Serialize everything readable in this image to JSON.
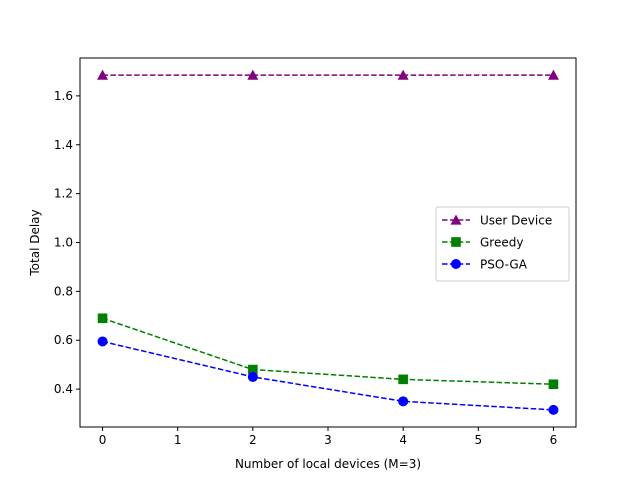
{
  "chart_data": {
    "type": "line",
    "title": "",
    "xlabel": "Number of local devices (M=3)",
    "ylabel": "Total Delay",
    "xlim": [
      -0.3,
      6.3
    ],
    "ylim": [
      0.245,
      1.755
    ],
    "xticks": [
      0,
      1,
      2,
      3,
      4,
      5,
      6
    ],
    "yticks": [
      0.4,
      0.6,
      0.8,
      1.0,
      1.2,
      1.4,
      1.6
    ],
    "ytick_labels": [
      "0.4",
      "0.6",
      "0.8",
      "1.0",
      "1.2",
      "1.4",
      "1.6"
    ],
    "grid": false,
    "legend_position": "center-right",
    "x": [
      0,
      2,
      4,
      6
    ],
    "series": [
      {
        "name": "User Device",
        "values": [
          1.685,
          1.685,
          1.685,
          1.685
        ],
        "color": "#800080",
        "marker": "triangle",
        "linestyle": "dashed"
      },
      {
        "name": "Greedy",
        "values": [
          0.69,
          0.48,
          0.44,
          0.42
        ],
        "color": "#008000",
        "marker": "square",
        "linestyle": "dashed"
      },
      {
        "name": "PSO-GA",
        "values": [
          0.595,
          0.45,
          0.35,
          0.315
        ],
        "color": "#0000ff",
        "marker": "circle",
        "linestyle": "dashed"
      }
    ]
  }
}
